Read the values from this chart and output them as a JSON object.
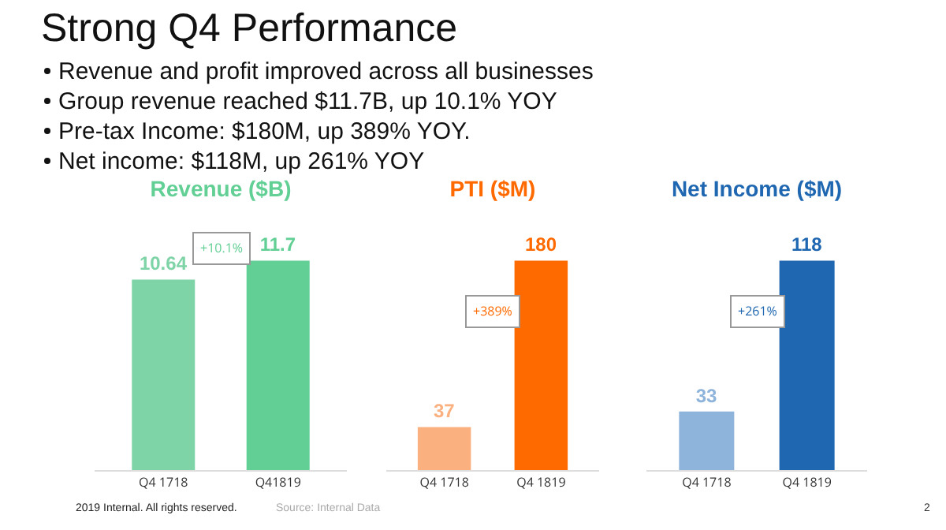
{
  "chart_data": [
    {
      "type": "other",
      "title": "Strong Q4 Performance",
      "annotations": [
        "Revenue and profit improved across all businesses",
        "Group revenue reached $11.7B, up 10.1% YOY",
        "Pre-tax Income: $180M, up 389% YOY.",
        "Net income: $118M, up 261% YOY",
        "2019 Internal. All rights reserved.",
        "Source: Internal Data",
        "2"
      ]
    },
    {
      "type": "bar",
      "title": "Revenue ($B)",
      "categories": [
        "Q4 1718",
        "Q41819"
      ],
      "values": [
        10.64,
        11.7
      ],
      "colors": [
        "#7fd4a7",
        "#62cf95"
      ],
      "data_labels": true,
      "annotations": [
        "+10.1%"
      ]
    },
    {
      "type": "bar",
      "title": "PTI ($M)",
      "categories": [
        "Q4 1718",
        "Q4 1819"
      ],
      "values": [
        37,
        180
      ],
      "colors": [
        "#fbb07f",
        "#ff6a00"
      ],
      "data_labels": true,
      "annotations": [
        "+389%"
      ]
    },
    {
      "type": "bar",
      "title": "Net Income ($M)",
      "categories": [
        "Q4 1718",
        "Q4 1819"
      ],
      "values": [
        33,
        118
      ],
      "colors": [
        "#8fb4db",
        "#1f67b1"
      ],
      "data_labels": true,
      "annotations": [
        "+261%"
      ]
    }
  ]
}
